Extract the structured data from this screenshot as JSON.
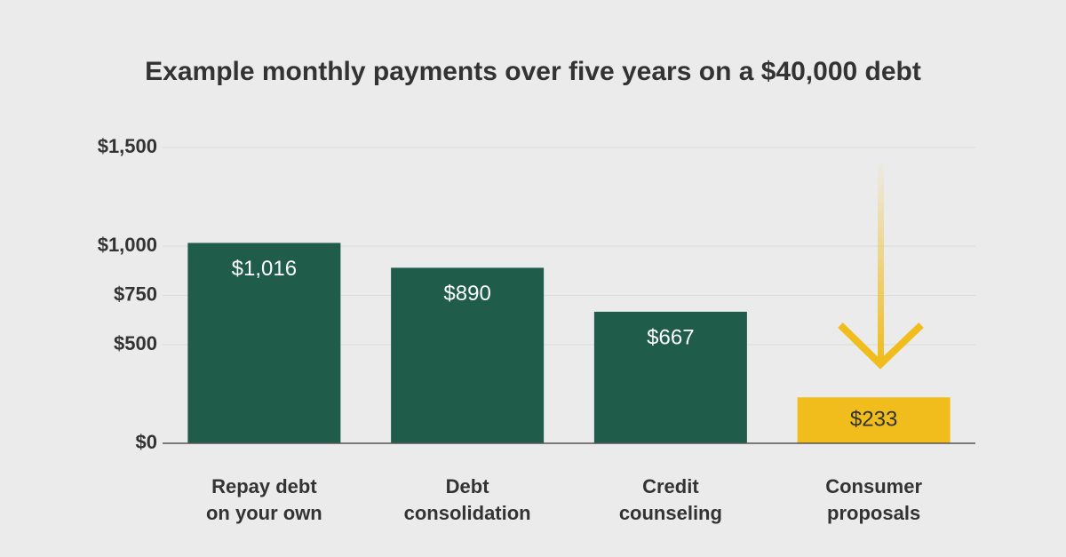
{
  "chart_data": {
    "type": "bar",
    "title": "Example monthly payments over five years on a $40,000 debt",
    "categories": [
      "Repay debt\non your own",
      "Debt\nconsolidation",
      "Credit\ncounseling",
      "Consumer\nproposals"
    ],
    "values": [
      1016,
      890,
      667,
      233
    ],
    "value_labels": [
      "$1,016",
      "$890",
      "$667",
      "$233"
    ],
    "colors": [
      "#1f5c4a",
      "#1f5c4a",
      "#1f5c4a",
      "#f0bd1c"
    ],
    "ylim": [
      0,
      1500
    ],
    "yticks": [
      {
        "value": 0,
        "label": "$0"
      },
      {
        "value": 500,
        "label": "$500"
      },
      {
        "value": 750,
        "label": "$750"
      },
      {
        "value": 1000,
        "label": "$1,000"
      },
      {
        "value": 1500,
        "label": "$1,500"
      }
    ],
    "grid": true
  }
}
